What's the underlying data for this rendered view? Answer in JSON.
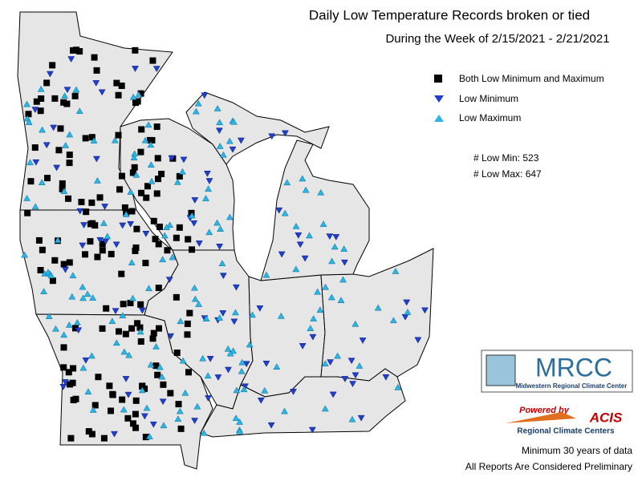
{
  "header": {
    "title": "Daily Low Temperature Records broken or tied",
    "subtitle": "During the Week of 2/15/2021 - 2/21/2021"
  },
  "legend": [
    {
      "label": "Both Low Minimum and Maximum",
      "symbol": "square",
      "color": "#000000"
    },
    {
      "label": "Low Minimum",
      "symbol": "down-triangle",
      "color": "#1f3fd0"
    },
    {
      "label": "Low Maximum",
      "symbol": "up-triangle",
      "color": "#29b6e6"
    }
  ],
  "counts": [
    "# Low Min: 523",
    "# Low Max: 647"
  ],
  "logos": {
    "mrcc": "MRCC",
    "mrcc_name": "Midwestern Regional Climate Center",
    "powered": "Powered by",
    "acis": "ACIS",
    "rcc": "Regional Climate Centers"
  },
  "footer": [
    "Minimum 30 years of data",
    "All Reports Are Considered Preliminary"
  ]
}
